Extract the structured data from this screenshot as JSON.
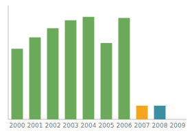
{
  "chart_data": {
    "type": "bar",
    "categories": [
      "2000",
      "2001",
      "2002",
      "2003",
      "2004",
      "2005",
      "2006",
      "2007",
      "2008",
      "2009"
    ],
    "values": [
      62,
      72,
      80,
      87,
      90,
      67,
      89,
      12,
      12,
      0
    ],
    "colors": [
      "#6aaa5a",
      "#6aaa5a",
      "#6aaa5a",
      "#6aaa5a",
      "#6aaa5a",
      "#6aaa5a",
      "#6aaa5a",
      "#f5a520",
      "#3a8fa0",
      "#ffffff"
    ],
    "ylim": [
      0,
      100
    ],
    "yticks": [],
    "grid": false,
    "tick_labels": "x"
  }
}
